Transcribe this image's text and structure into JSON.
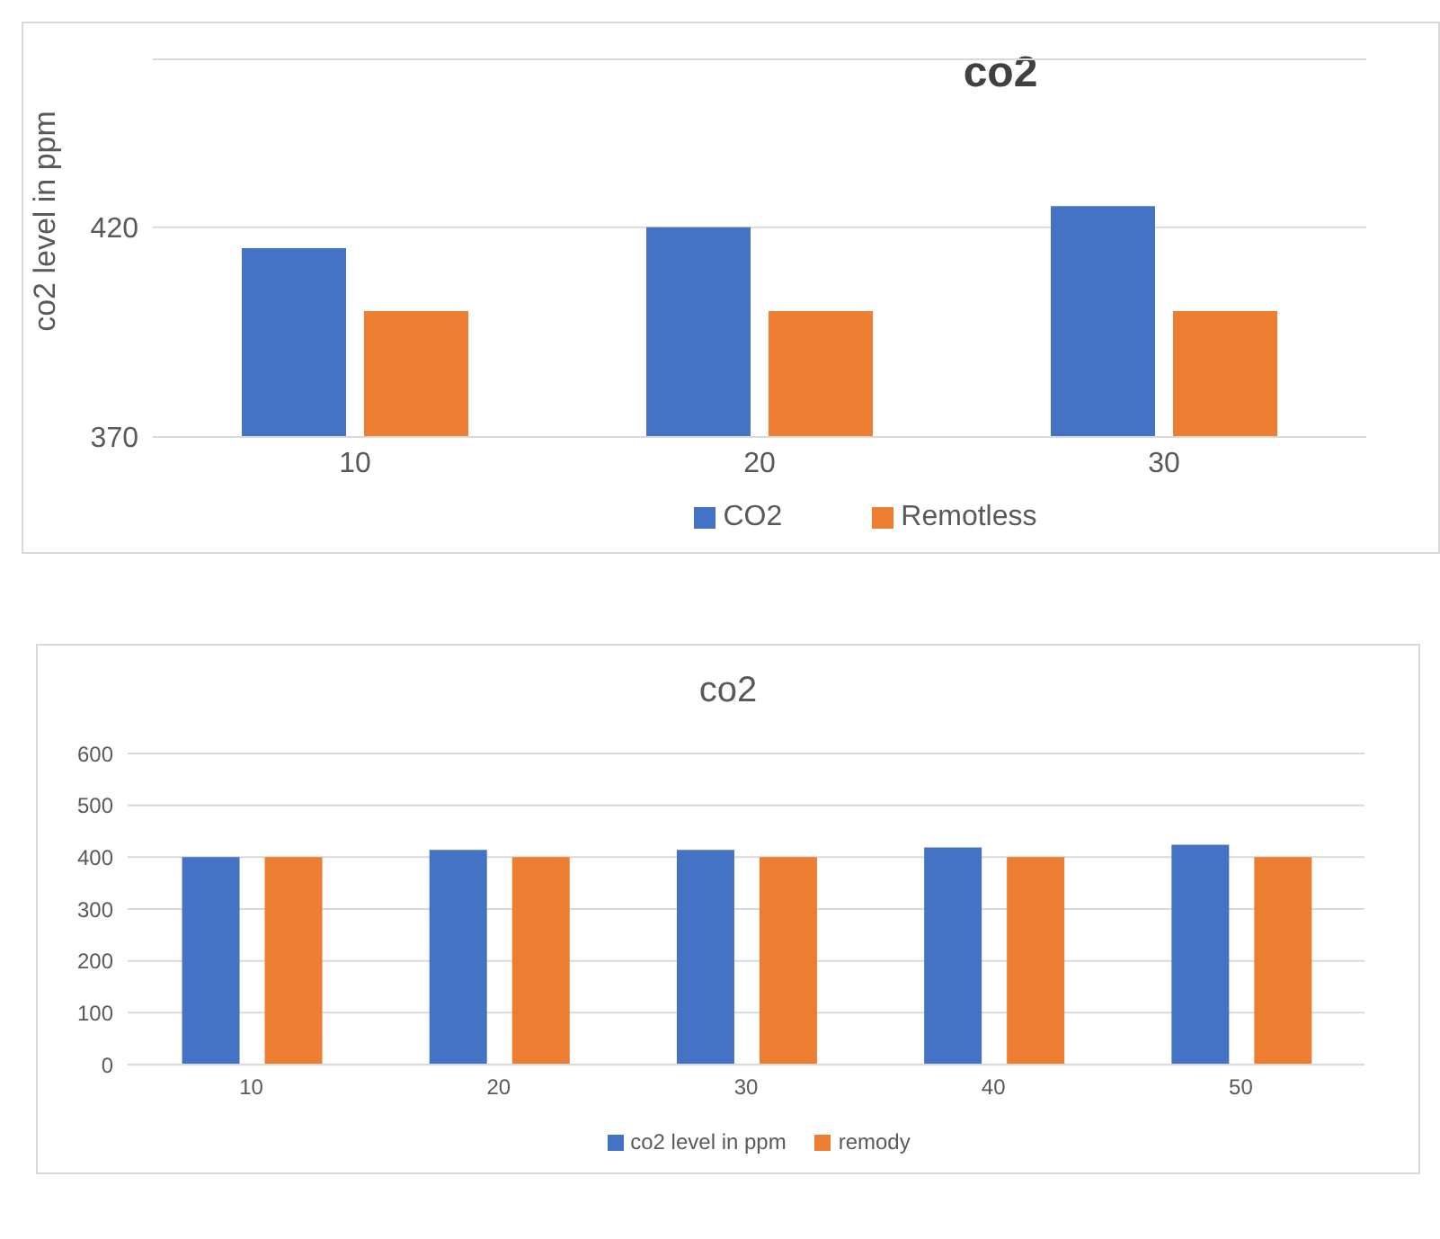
{
  "chart_data": [
    {
      "type": "bar",
      "title": "co2",
      "ylabel": "co2 level in ppm",
      "categories": [
        "10",
        "20",
        "30"
      ],
      "series": [
        {
          "name": "CO2",
          "color": "#4472c4",
          "values": [
            415,
            420,
            425
          ]
        },
        {
          "name": "Remotless",
          "color": "#ed7d31",
          "values": [
            400,
            400,
            400
          ]
        }
      ],
      "ylim": [
        370,
        460
      ],
      "yticks": [
        370,
        420
      ],
      "grid": "y",
      "legend": "bottom"
    },
    {
      "type": "bar",
      "title": "co2",
      "categories": [
        "10",
        "20",
        "30",
        "40",
        "50"
      ],
      "series": [
        {
          "name": "co2 level in ppm",
          "color": "#4472c4",
          "values": [
            400,
            414,
            414,
            419,
            424
          ]
        },
        {
          "name": "remody",
          "color": "#ed7d31",
          "values": [
            400,
            400,
            400,
            400,
            400
          ]
        }
      ],
      "ylim": [
        0,
        600
      ],
      "yticks": [
        0,
        100,
        200,
        300,
        400,
        500,
        600
      ],
      "grid": "y",
      "legend": "bottom"
    }
  ]
}
